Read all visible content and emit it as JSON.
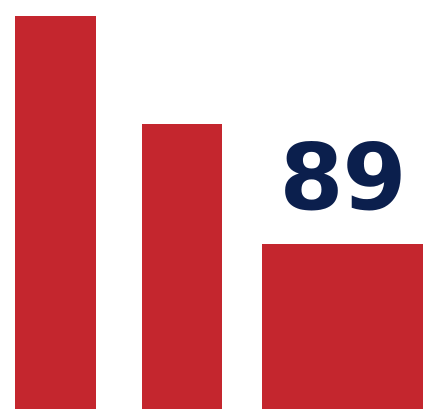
{
  "logo": {
    "number": "89",
    "bar_color": "#c4262e",
    "number_color": "#0b1f4d",
    "bars": [
      {
        "level": 1.0
      },
      {
        "level": 0.725
      },
      {
        "level": 0.42
      }
    ]
  }
}
